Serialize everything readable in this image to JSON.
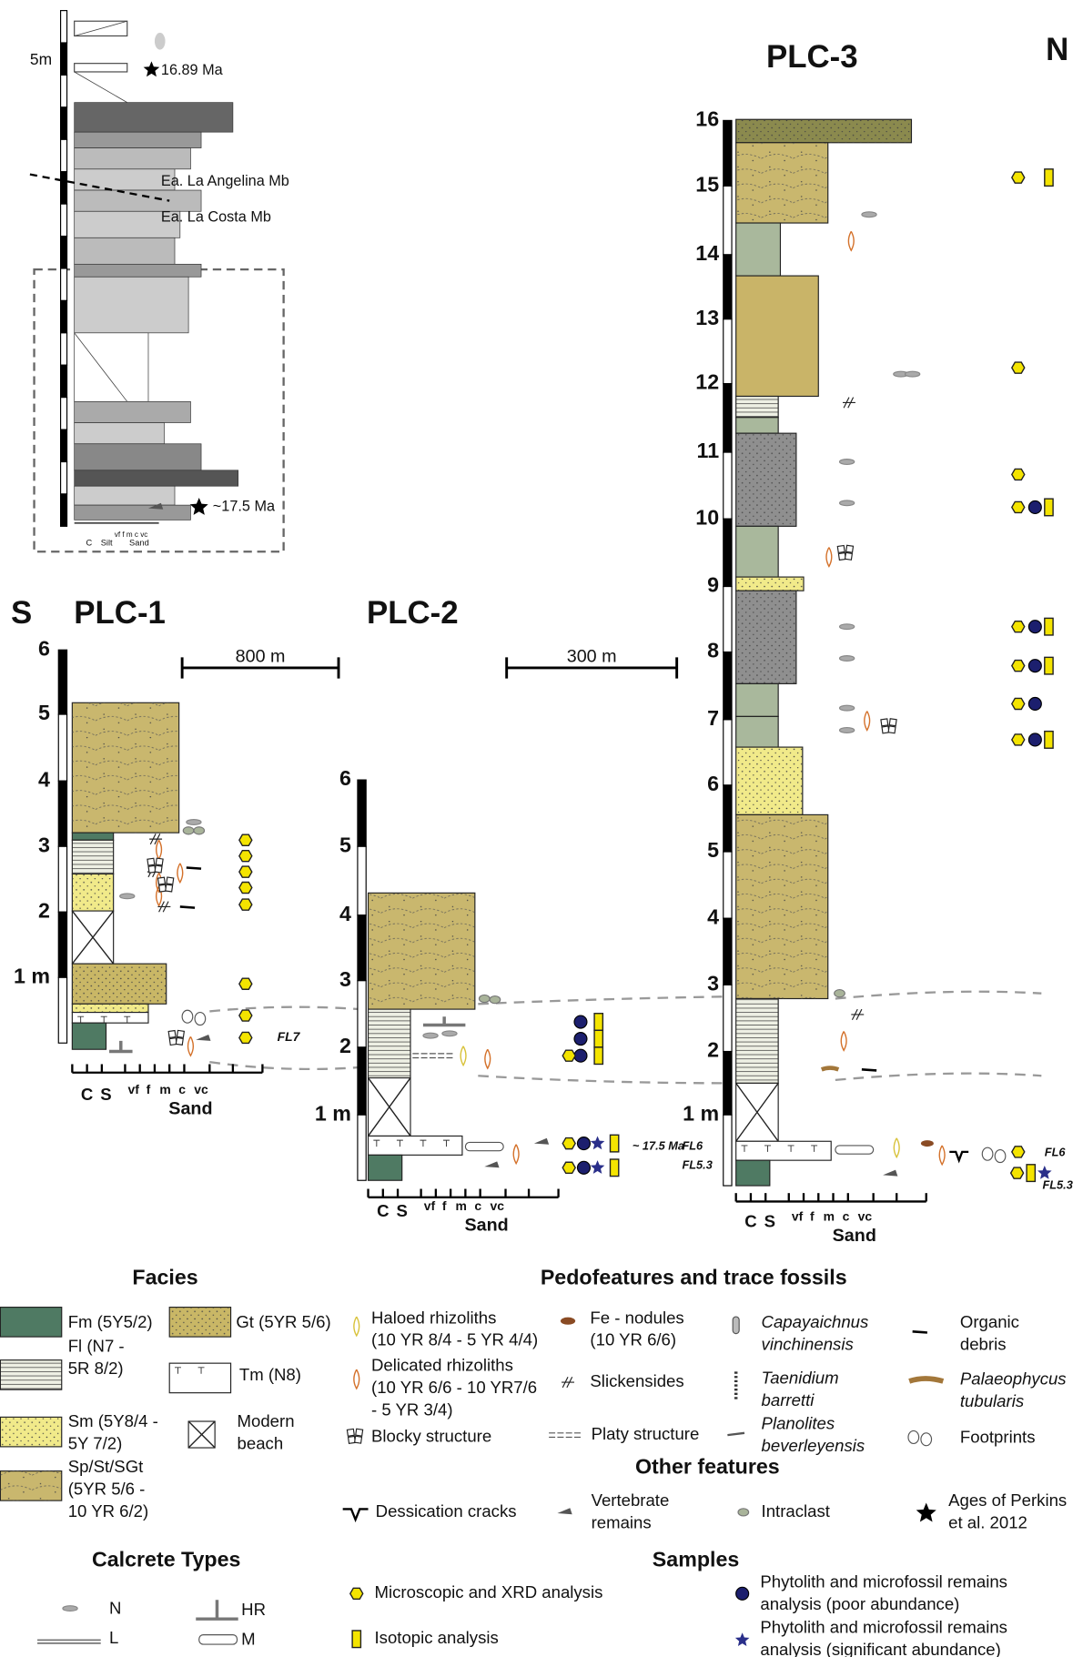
{
  "inset": {
    "scale_label": "5m",
    "age_top": "16.89 Ma",
    "member_upper": "Ea. La Angelina Mb",
    "member_lower": "Ea. La Costa Mb",
    "age_bottom": "~17.5 Ma",
    "axis": [
      "C",
      "Silt",
      "Sand"
    ],
    "grain": "vf f m c vc"
  },
  "directions": {
    "south": "S",
    "north": "N"
  },
  "distances": [
    "800 m",
    "300 m"
  ],
  "grain_axis": [
    "C",
    "S",
    "vf",
    "f",
    "m",
    "c",
    "vc",
    "Sand"
  ],
  "sections": [
    {
      "name": "PLC-1",
      "scale": [
        "6",
        "5",
        "4",
        "3",
        "2",
        "1 m"
      ],
      "labels": [
        "FL7"
      ]
    },
    {
      "name": "PLC-2",
      "scale": [
        "6",
        "5",
        "4",
        "3",
        "2",
        "1 m"
      ],
      "labels": [
        "~ 17.5 Ma",
        "FL6",
        "FL5.3"
      ]
    },
    {
      "name": "PLC-3",
      "scale": [
        "16",
        "15",
        "14",
        "13",
        "12",
        "11",
        "10",
        "9",
        "8",
        "7",
        "6",
        "5",
        "4",
        "3",
        "2",
        "1 m"
      ],
      "labels": [
        "FL6",
        "FL5.3"
      ]
    }
  ],
  "legend": {
    "facies": {
      "title": "Facies",
      "items": [
        [
          "Fm (5Y5/2)"
        ],
        [
          "Fl (N7 -",
          "5R 8/2)"
        ],
        [
          "Sm (5Y8/4 -",
          "5Y 7/2)"
        ],
        [
          "Sp/St/SGt",
          "(5YR 5/6 -",
          "10 YR 6/2)"
        ],
        [
          "Gt (5YR 5/6)"
        ],
        [
          "Tm (N8)"
        ],
        [
          "Modern",
          "beach"
        ]
      ]
    },
    "calcrete": {
      "title": "Calcrete Types",
      "items": [
        "N",
        "L",
        "HR",
        "M"
      ]
    },
    "pedofeatures": {
      "title": "Pedofeatures and trace fossils",
      "items": [
        [
          "Haloed rhizoliths",
          "(10 YR 8/4 - 5 YR 4/4)"
        ],
        [
          "Delicated rhizoliths",
          "(10 YR 6/6 - 10 YR7/6",
          "- 5 YR 3/4)"
        ],
        [
          "Blocky structure"
        ],
        [
          "Fe - nodules",
          "(10 YR 6/6)"
        ],
        [
          "Slickensides"
        ],
        [
          "Platy structure"
        ],
        [
          "Capayaichnus",
          "vinchinensis"
        ],
        [
          "Taenidium",
          "barretti"
        ],
        [
          "Planolites",
          "beverleyensis"
        ],
        [
          "Organic",
          "debris"
        ],
        [
          "Palaeophycus",
          "tubularis"
        ],
        [
          "Footprints"
        ]
      ]
    },
    "other": {
      "title": "Other features",
      "items": [
        [
          "Dessication cracks"
        ],
        [
          "Vertebrate",
          "remains"
        ],
        [
          "Intraclast"
        ],
        [
          "Ages of Perkins",
          "et al. 2012"
        ]
      ]
    },
    "samples": {
      "title": "Samples",
      "items": [
        [
          "Microscopic and XRD analysis"
        ],
        [
          "Isotopic analysis"
        ],
        [
          "Phytolith and microfossil remains",
          "analysis (poor abundance)"
        ],
        [
          "Phytolith and microfossil remains",
          "analysis (significant abundance)"
        ]
      ]
    }
  }
}
